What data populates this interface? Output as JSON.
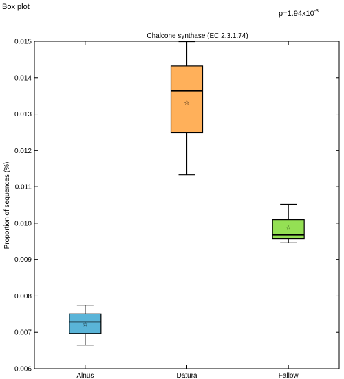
{
  "window_title": "Box plot",
  "annotation": {
    "prefix": "p=1.94x10",
    "exponent": "-3"
  },
  "chart_data": {
    "type": "box",
    "title": "Chalcone synthase (EC 2.3.1.74)",
    "xlabel": "",
    "ylabel": "Proportion of sequences (%)",
    "ylim": [
      0.006,
      0.015
    ],
    "yticks": [
      "0.006",
      "0.007",
      "0.008",
      "0.009",
      "0.010",
      "0.011",
      "0.012",
      "0.013",
      "0.014",
      "0.015"
    ],
    "grid": false,
    "categories": [
      "Alnus",
      "Datura",
      "Fallow"
    ],
    "boxes": [
      {
        "category": "Alnus",
        "min": 0.00665,
        "q1": 0.00697,
        "median": 0.00728,
        "q3": 0.00751,
        "max": 0.00775,
        "mean": 0.00723,
        "color": "#5ab4d8"
      },
      {
        "category": "Datura",
        "min": 0.01133,
        "q1": 0.01249,
        "median": 0.01364,
        "q3": 0.01432,
        "max": 0.01499,
        "mean": 0.01332,
        "color": "#ffb05a"
      },
      {
        "category": "Fallow",
        "min": 0.00946,
        "q1": 0.00957,
        "median": 0.00968,
        "q3": 0.0101,
        "max": 0.01052,
        "mean": 0.00988,
        "color": "#94e054"
      }
    ]
  }
}
